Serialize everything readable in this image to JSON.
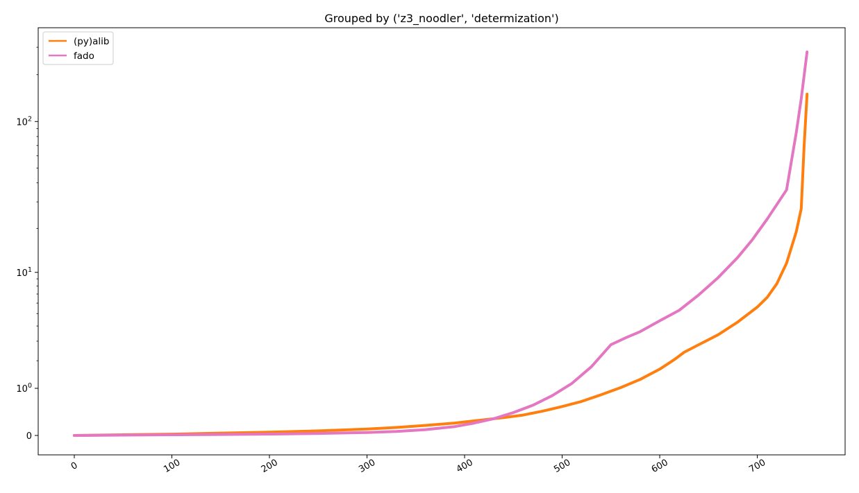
{
  "chart_data": {
    "type": "line",
    "title": "Grouped by ('z3_noodler', 'determization')",
    "xlabel": "",
    "ylabel": "",
    "xlim": [
      -37,
      790
    ],
    "x_ticks": [
      0,
      100,
      200,
      300,
      400,
      500,
      600,
      700
    ],
    "yscale": "symlog",
    "y_ticks": [
      {
        "value": 0,
        "base": "0",
        "exp": ""
      },
      {
        "value": 1,
        "base": "10",
        "exp": "0"
      },
      {
        "value": 10,
        "base": "10",
        "exp": "1"
      },
      {
        "value": 100,
        "base": "10",
        "exp": "2"
      }
    ],
    "ylim": [
      -0.33,
      400
    ],
    "grid": false,
    "legend": "top-left",
    "series": [
      {
        "name": "(py)alib",
        "color": "#ff7f0e",
        "x": [
          0,
          50,
          100,
          150,
          200,
          250,
          300,
          330,
          360,
          390,
          420,
          440,
          460,
          480,
          500,
          520,
          540,
          560,
          580,
          600,
          615,
          625,
          640,
          660,
          680,
          700,
          710,
          720,
          730,
          740,
          745,
          748,
          751
        ],
        "y": [
          0.0,
          0.01,
          0.02,
          0.035,
          0.05,
          0.07,
          0.1,
          0.125,
          0.16,
          0.2,
          0.26,
          0.3,
          0.35,
          0.43,
          0.53,
          0.65,
          0.82,
          1.02,
          1.28,
          1.65,
          2.05,
          2.4,
          2.8,
          3.4,
          4.3,
          5.6,
          6.6,
          8.3,
          11.6,
          19.0,
          27.0,
          70.0,
          150.0
        ]
      },
      {
        "name": "fado",
        "color": "#e377c2",
        "x": [
          0,
          50,
          100,
          150,
          200,
          250,
          300,
          330,
          360,
          390,
          410,
          430,
          450,
          470,
          490,
          510,
          530,
          550,
          565,
          580,
          600,
          620,
          640,
          660,
          680,
          695,
          710,
          730,
          740,
          745,
          751
        ],
        "y": [
          0.0,
          0.005,
          0.01,
          0.015,
          0.02,
          0.03,
          0.045,
          0.06,
          0.09,
          0.14,
          0.2,
          0.28,
          0.4,
          0.56,
          0.8,
          1.15,
          1.75,
          2.8,
          3.2,
          3.6,
          4.4,
          5.3,
          6.9,
          9.2,
          12.7,
          16.8,
          23.0,
          36.0,
          85.0,
          140.0,
          280.0
        ]
      }
    ]
  }
}
